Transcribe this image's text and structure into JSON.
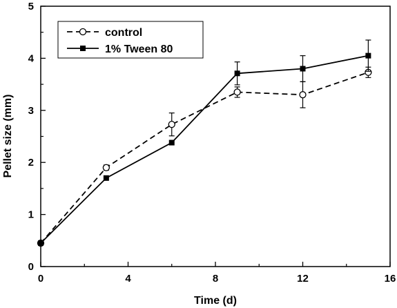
{
  "chart_data": {
    "type": "line",
    "xlabel": "Time (d)",
    "ylabel": "Pellet size (mm)",
    "xlim": [
      0,
      16
    ],
    "ylim": [
      0,
      5
    ],
    "xticks": [
      0,
      4,
      8,
      12,
      16
    ],
    "yticks": [
      0,
      1,
      2,
      3,
      4,
      5
    ],
    "grid": false,
    "legend_position": "top-left",
    "series": [
      {
        "name": "control",
        "style": "dashed",
        "marker": "open-circle",
        "color": "#000000",
        "x": [
          0,
          3,
          6,
          9,
          12,
          15
        ],
        "y": [
          0.45,
          1.9,
          2.73,
          3.35,
          3.3,
          3.73
        ],
        "error": [
          0.0,
          0.05,
          0.22,
          0.1,
          0.25,
          0.1
        ]
      },
      {
        "name": "1% Tween 80",
        "style": "solid",
        "marker": "filled-square",
        "color": "#000000",
        "x": [
          0,
          3,
          6,
          9,
          12,
          15
        ],
        "y": [
          0.45,
          1.7,
          2.38,
          3.71,
          3.8,
          4.05
        ],
        "error": [
          0.0,
          0.0,
          0.0,
          0.22,
          0.25,
          0.3
        ]
      }
    ]
  }
}
